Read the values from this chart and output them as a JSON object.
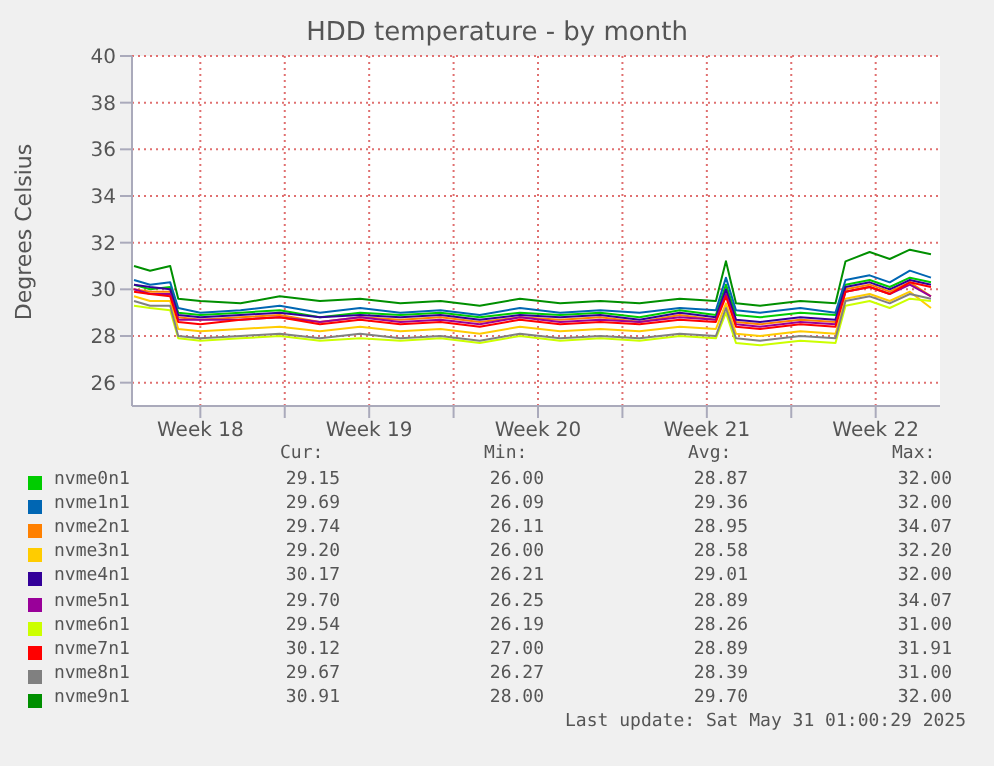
{
  "chart_data": {
    "type": "line",
    "title": "HDD temperature - by month",
    "ylabel": "Degrees Celsius",
    "x": [
      "2025-04-28T18:00",
      "2025-04-29T10:00",
      "2025-04-30T06:00",
      "2025-04-30T14:00",
      "2025-05-01T12:00",
      "2025-05-03T04:00",
      "2025-05-04T19:00",
      "2025-05-06T11:00",
      "2025-05-08T03:00",
      "2025-05-09T19:00",
      "2025-05-11T11:00",
      "2025-05-13T02:00",
      "2025-05-14T18:00",
      "2025-05-16T10:00",
      "2025-05-18T02:00",
      "2025-05-19T17:00",
      "2025-05-21T09:00",
      "2025-05-22T21:00",
      "2025-05-23T07:00",
      "2025-05-23T17:00",
      "2025-05-24T17:00",
      "2025-05-26T09:00",
      "2025-05-27T20:00",
      "2025-05-28T06:00",
      "2025-05-29T06:00",
      "2025-05-30T02:00",
      "2025-05-30T22:00",
      "2025-05-31T19:00"
    ],
    "xlim": [
      "2025-04-28T16:00",
      "2025-06-01T04:00"
    ],
    "xticks": [
      {
        "value": "2025-05-01T12:00",
        "label": "Week 18"
      },
      {
        "value": "2025-05-05T00:00",
        "label": null
      },
      {
        "value": "2025-05-08T12:00",
        "label": "Week 19"
      },
      {
        "value": "2025-05-12T00:00",
        "label": null
      },
      {
        "value": "2025-05-15T12:00",
        "label": "Week 20"
      },
      {
        "value": "2025-05-19T00:00",
        "label": null
      },
      {
        "value": "2025-05-22T12:00",
        "label": "Week 21"
      },
      {
        "value": "2025-05-26T00:00",
        "label": null
      },
      {
        "value": "2025-05-29T12:00",
        "label": "Week 22"
      }
    ],
    "ylim": [
      25,
      40
    ],
    "yticks": [
      26,
      28,
      30,
      32,
      34,
      36,
      38,
      40
    ],
    "grid": true,
    "legend": "bottom",
    "series": [
      {
        "name": "nvme0n1",
        "color": "#00cc00",
        "values": [
          30.2,
          30.0,
          30.1,
          29.0,
          28.9,
          29.0,
          29.1,
          28.8,
          29.0,
          28.9,
          29.0,
          28.8,
          29.0,
          28.9,
          29.0,
          28.8,
          29.1,
          28.9,
          30.2,
          28.9,
          28.8,
          29.0,
          28.9,
          30.2,
          30.4,
          30.1,
          30.5,
          30.3
        ]
      },
      {
        "name": "nvme1n1",
        "color": "#0066b3",
        "values": [
          30.4,
          30.2,
          30.3,
          29.2,
          29.0,
          29.1,
          29.3,
          29.0,
          29.2,
          29.0,
          29.1,
          28.9,
          29.2,
          29.0,
          29.1,
          29.0,
          29.2,
          29.1,
          30.5,
          29.1,
          29.0,
          29.2,
          29.0,
          30.4,
          30.6,
          30.3,
          30.8,
          30.5
        ]
      },
      {
        "name": "nvme2n1",
        "color": "#ff8000",
        "values": [
          30.0,
          29.9,
          29.9,
          28.8,
          28.7,
          28.8,
          28.9,
          28.6,
          28.8,
          28.7,
          28.8,
          28.6,
          28.8,
          28.7,
          28.8,
          28.6,
          28.9,
          28.7,
          29.9,
          28.6,
          28.5,
          28.7,
          28.6,
          30.0,
          30.2,
          29.9,
          30.3,
          29.7
        ]
      },
      {
        "name": "nvme3n1",
        "color": "#ffcc00",
        "values": [
          29.7,
          29.5,
          29.5,
          28.3,
          28.2,
          28.3,
          28.4,
          28.2,
          28.4,
          28.2,
          28.3,
          28.1,
          28.4,
          28.2,
          28.3,
          28.2,
          28.4,
          28.3,
          29.4,
          28.1,
          28.0,
          28.2,
          28.1,
          29.6,
          29.8,
          29.5,
          29.9,
          29.2
        ]
      },
      {
        "name": "nvme4n1",
        "color": "#330099",
        "values": [
          30.2,
          30.1,
          30.0,
          28.9,
          28.8,
          28.9,
          29.0,
          28.8,
          28.9,
          28.8,
          28.9,
          28.7,
          28.9,
          28.8,
          28.9,
          28.7,
          29.0,
          28.8,
          30.0,
          28.7,
          28.6,
          28.8,
          28.7,
          30.1,
          30.3,
          30.0,
          30.4,
          30.2
        ]
      },
      {
        "name": "nvme5n1",
        "color": "#990099",
        "values": [
          30.0,
          29.8,
          29.8,
          28.7,
          28.7,
          28.7,
          28.8,
          28.6,
          28.8,
          28.6,
          28.7,
          28.5,
          28.8,
          28.6,
          28.7,
          28.6,
          28.8,
          28.7,
          29.8,
          28.5,
          28.4,
          28.6,
          28.5,
          29.9,
          30.1,
          29.8,
          30.2,
          29.7
        ]
      },
      {
        "name": "nvme6n1",
        "color": "#ccff00",
        "values": [
          29.3,
          29.2,
          29.1,
          27.9,
          27.8,
          27.9,
          28.0,
          27.8,
          27.9,
          27.8,
          27.9,
          27.7,
          28.0,
          27.8,
          27.9,
          27.8,
          28.0,
          27.9,
          29.0,
          27.7,
          27.6,
          27.8,
          27.7,
          29.3,
          29.5,
          29.2,
          29.6,
          29.5
        ]
      },
      {
        "name": "nvme7n1",
        "color": "#ff0000",
        "values": [
          29.9,
          29.8,
          29.7,
          28.6,
          28.5,
          28.7,
          28.8,
          28.5,
          28.7,
          28.5,
          28.6,
          28.4,
          28.7,
          28.5,
          28.6,
          28.5,
          28.7,
          28.6,
          29.7,
          28.4,
          28.3,
          28.5,
          28.4,
          29.9,
          30.1,
          29.8,
          30.3,
          30.1
        ]
      },
      {
        "name": "nvme8n1",
        "color": "#808080",
        "values": [
          29.5,
          29.3,
          29.3,
          28.0,
          27.9,
          28.0,
          28.1,
          27.9,
          28.1,
          27.9,
          28.0,
          27.8,
          28.1,
          27.9,
          28.0,
          27.9,
          28.1,
          28.0,
          29.2,
          27.9,
          27.8,
          28.0,
          27.9,
          29.5,
          29.7,
          29.4,
          29.8,
          29.6
        ]
      },
      {
        "name": "nvme9n1",
        "color": "#008f00",
        "values": [
          31.0,
          30.8,
          31.0,
          29.6,
          29.5,
          29.4,
          29.7,
          29.5,
          29.6,
          29.4,
          29.5,
          29.3,
          29.6,
          29.4,
          29.5,
          29.4,
          29.6,
          29.5,
          31.2,
          29.4,
          29.3,
          29.5,
          29.4,
          31.2,
          31.6,
          31.3,
          31.7,
          31.5
        ]
      }
    ],
    "annotations": [
      "Cur:",
      "Min:",
      "Avg:",
      "Max:",
      "29.15",
      "26.00",
      "28.87",
      "32.00",
      "29.69",
      "26.09",
      "29.36",
      "32.00",
      "29.74",
      "26.11",
      "28.95",
      "34.07",
      "29.20",
      "26.00",
      "28.58",
      "32.20",
      "30.17",
      "26.21",
      "29.01",
      "32.00",
      "29.70",
      "26.25",
      "28.89",
      "34.07",
      "29.54",
      "26.19",
      "28.26",
      "31.00",
      "30.12",
      "27.00",
      "28.89",
      "31.91",
      "29.67",
      "26.27",
      "28.39",
      "31.00",
      "30.91",
      "28.00",
      "29.70",
      "32.00",
      "Last update: Sat May 31 01:00:29 2025"
    ]
  }
}
